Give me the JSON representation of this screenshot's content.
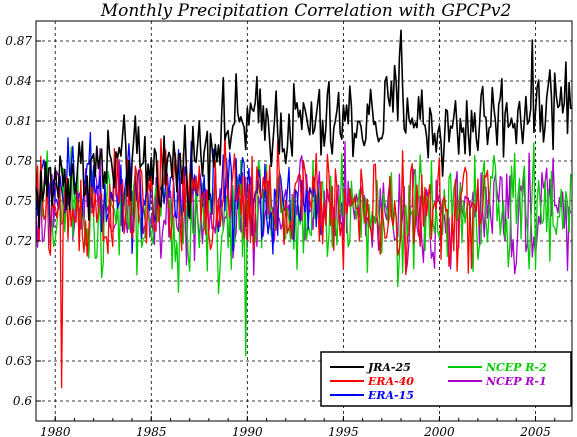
{
  "chart_data": {
    "type": "line",
    "title": "Monthly Precipitation Correlation with GPCPv2",
    "xlabel": "",
    "ylabel": "",
    "xlim": [
      1979.0,
      2006.9
    ],
    "ylim": [
      0.585,
      0.885
    ],
    "x_ticks": [
      1980,
      1985,
      1990,
      1995,
      2000,
      2005
    ],
    "x_tick_labels": [
      "1980",
      "1985",
      "1990",
      "1995",
      "2000",
      "2005"
    ],
    "y_ticks": [
      0.6,
      0.63,
      0.66,
      0.69,
      0.72,
      0.75,
      0.78,
      0.81,
      0.84,
      0.87
    ],
    "y_tick_labels": [
      "0.6",
      "0.63",
      "0.66",
      "0.69",
      "0.72",
      "0.75",
      "0.78",
      "0.81",
      "0.84",
      "0.87"
    ],
    "grid": true,
    "legend_position": "bottom-right",
    "series": [
      {
        "name": "JRA-25",
        "color": "#000000",
        "start": 1979.0,
        "end": 2006.9,
        "x": [
          1979.0,
          1980.0,
          1981.0,
          1982.0,
          1983.0,
          1984.0,
          1985.0,
          1986.0,
          1987.0,
          1988.0,
          1989.0,
          1990.0,
          1991.0,
          1992.0,
          1993.0,
          1994.0,
          1995.0,
          1996.0,
          1997.0,
          1998.0,
          1999.0,
          2000.0,
          2001.0,
          2002.0,
          2003.0,
          2004.0,
          2005.0,
          2006.0,
          2006.9
        ],
        "y": [
          0.755,
          0.765,
          0.77,
          0.775,
          0.775,
          0.78,
          0.775,
          0.775,
          0.78,
          0.795,
          0.805,
          0.81,
          0.81,
          0.805,
          0.81,
          0.805,
          0.81,
          0.81,
          0.81,
          0.83,
          0.81,
          0.8,
          0.805,
          0.81,
          0.815,
          0.815,
          0.825,
          0.825,
          0.828
        ],
        "amplitude": 0.026,
        "max": 0.878,
        "max_at": 1998.0
      },
      {
        "name": "ERA-40",
        "color": "#ff0000",
        "start": 1979.0,
        "end": 2002.6,
        "x": [
          1979.0,
          1981.0,
          1983.0,
          1985.0,
          1987.0,
          1989.0,
          1991.0,
          1993.0,
          1995.0,
          1997.0,
          1999.0,
          2001.0,
          2002.6
        ],
        "y": [
          0.745,
          0.742,
          0.745,
          0.752,
          0.75,
          0.748,
          0.752,
          0.75,
          0.745,
          0.738,
          0.742,
          0.74,
          0.742
        ],
        "amplitude": 0.033,
        "min": 0.61,
        "min_at": 1980.3
      },
      {
        "name": "ERA-15",
        "color": "#0000ff",
        "start": 1979.0,
        "end": 1993.9,
        "x": [
          1979.0,
          1981.0,
          1983.0,
          1985.0,
          1987.0,
          1989.0,
          1991.0,
          1993.0,
          1993.9
        ],
        "y": [
          0.755,
          0.76,
          0.76,
          0.758,
          0.752,
          0.748,
          0.75,
          0.748,
          0.745
        ],
        "amplitude": 0.03
      },
      {
        "name": "NCEP R-2",
        "color": "#00cc00",
        "start": 1979.0,
        "end": 2006.9,
        "x": [
          1979.0,
          1982.0,
          1985.0,
          1988.0,
          1991.0,
          1994.0,
          1997.0,
          2000.0,
          2003.0,
          2006.9
        ],
        "y": [
          0.742,
          0.738,
          0.735,
          0.735,
          0.738,
          0.742,
          0.74,
          0.74,
          0.742,
          0.744
        ],
        "amplitude": 0.035,
        "min": 0.634,
        "min_at": 1989.9
      },
      {
        "name": "NCEP R-1",
        "color": "#aa00cc",
        "start": 1979.0,
        "end": 2006.9,
        "x": [
          1979.0,
          1982.0,
          1985.0,
          1988.0,
          1991.0,
          1994.0,
          1997.0,
          2000.0,
          2003.0,
          2006.9
        ],
        "y": [
          0.745,
          0.742,
          0.742,
          0.74,
          0.742,
          0.744,
          0.742,
          0.74,
          0.743,
          0.745
        ],
        "amplitude": 0.03
      }
    ]
  }
}
